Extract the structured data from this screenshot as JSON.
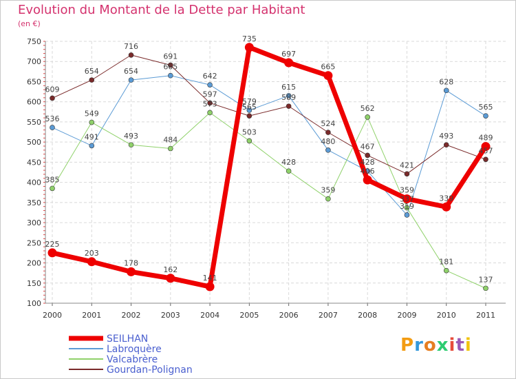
{
  "chart_data": {
    "type": "line",
    "title": "Evolution du Montant de la Dette par Habitant",
    "subtitle": "(en €)",
    "categories": [
      "2000",
      "2001",
      "2002",
      "2003",
      "2004",
      "2005",
      "2006",
      "2007",
      "2008",
      "2009",
      "2010",
      "2011"
    ],
    "ylim": [
      100,
      750
    ],
    "yticks": [
      100,
      150,
      200,
      250,
      300,
      350,
      400,
      450,
      500,
      550,
      600,
      650,
      700,
      750
    ],
    "grid": true,
    "legend_position": "bottom-left",
    "series": [
      {
        "name": "Labroquère",
        "color": "#5b9bd5",
        "width": 1,
        "values": [
          536,
          491,
          654,
          665,
          642,
          579,
          615,
          480,
          428,
          319,
          628,
          565
        ],
        "labels": [
          "536",
          "491",
          "654",
          "665",
          "642",
          "579",
          "615",
          "480",
          "428",
          "319",
          "628",
          "565"
        ]
      },
      {
        "name": "Valcabrère",
        "color": "#8fd16a",
        "width": 1,
        "values": [
          385,
          549,
          493,
          484,
          573,
          503,
          428,
          359,
          562,
          337,
          181,
          137
        ],
        "labels": [
          "385",
          "549",
          "493",
          "484",
          "573",
          "503",
          "428",
          "359",
          "562",
          "337",
          "181",
          "137"
        ]
      },
      {
        "name": "Gourdan-Polignan",
        "color": "#7a2a2a",
        "width": 1,
        "values": [
          609,
          654,
          716,
          691,
          597,
          565,
          589,
          524,
          467,
          421,
          493,
          457
        ],
        "labels": [
          "609",
          "654",
          "716",
          "691",
          "597",
          "565",
          "589",
          "524",
          "467",
          "421",
          "493",
          "457"
        ]
      },
      {
        "name": "SEILHAN",
        "color": "#ee0000",
        "width": 7,
        "values": [
          225,
          203,
          178,
          162,
          141,
          735,
          697,
          665,
          406,
          359,
          339,
          489
        ],
        "labels": [
          "225",
          "203",
          "178",
          "162",
          "141",
          "735",
          "697",
          "665",
          "406",
          "359",
          "339",
          "489"
        ]
      }
    ],
    "legend_order": [
      "SEILHAN",
      "Labroquère",
      "Valcabrère",
      "Gourdan-Polignan"
    ]
  },
  "legend": {
    "label_color": "#4a5fcf"
  },
  "logo": {
    "letters": [
      "P",
      "r",
      "o",
      "x",
      "i",
      "t",
      "i"
    ],
    "colors": [
      "#f39c12",
      "#3498db",
      "#e67e22",
      "#2ecc71",
      "#e74c3c",
      "#9b59b6",
      "#f1c40f"
    ]
  }
}
